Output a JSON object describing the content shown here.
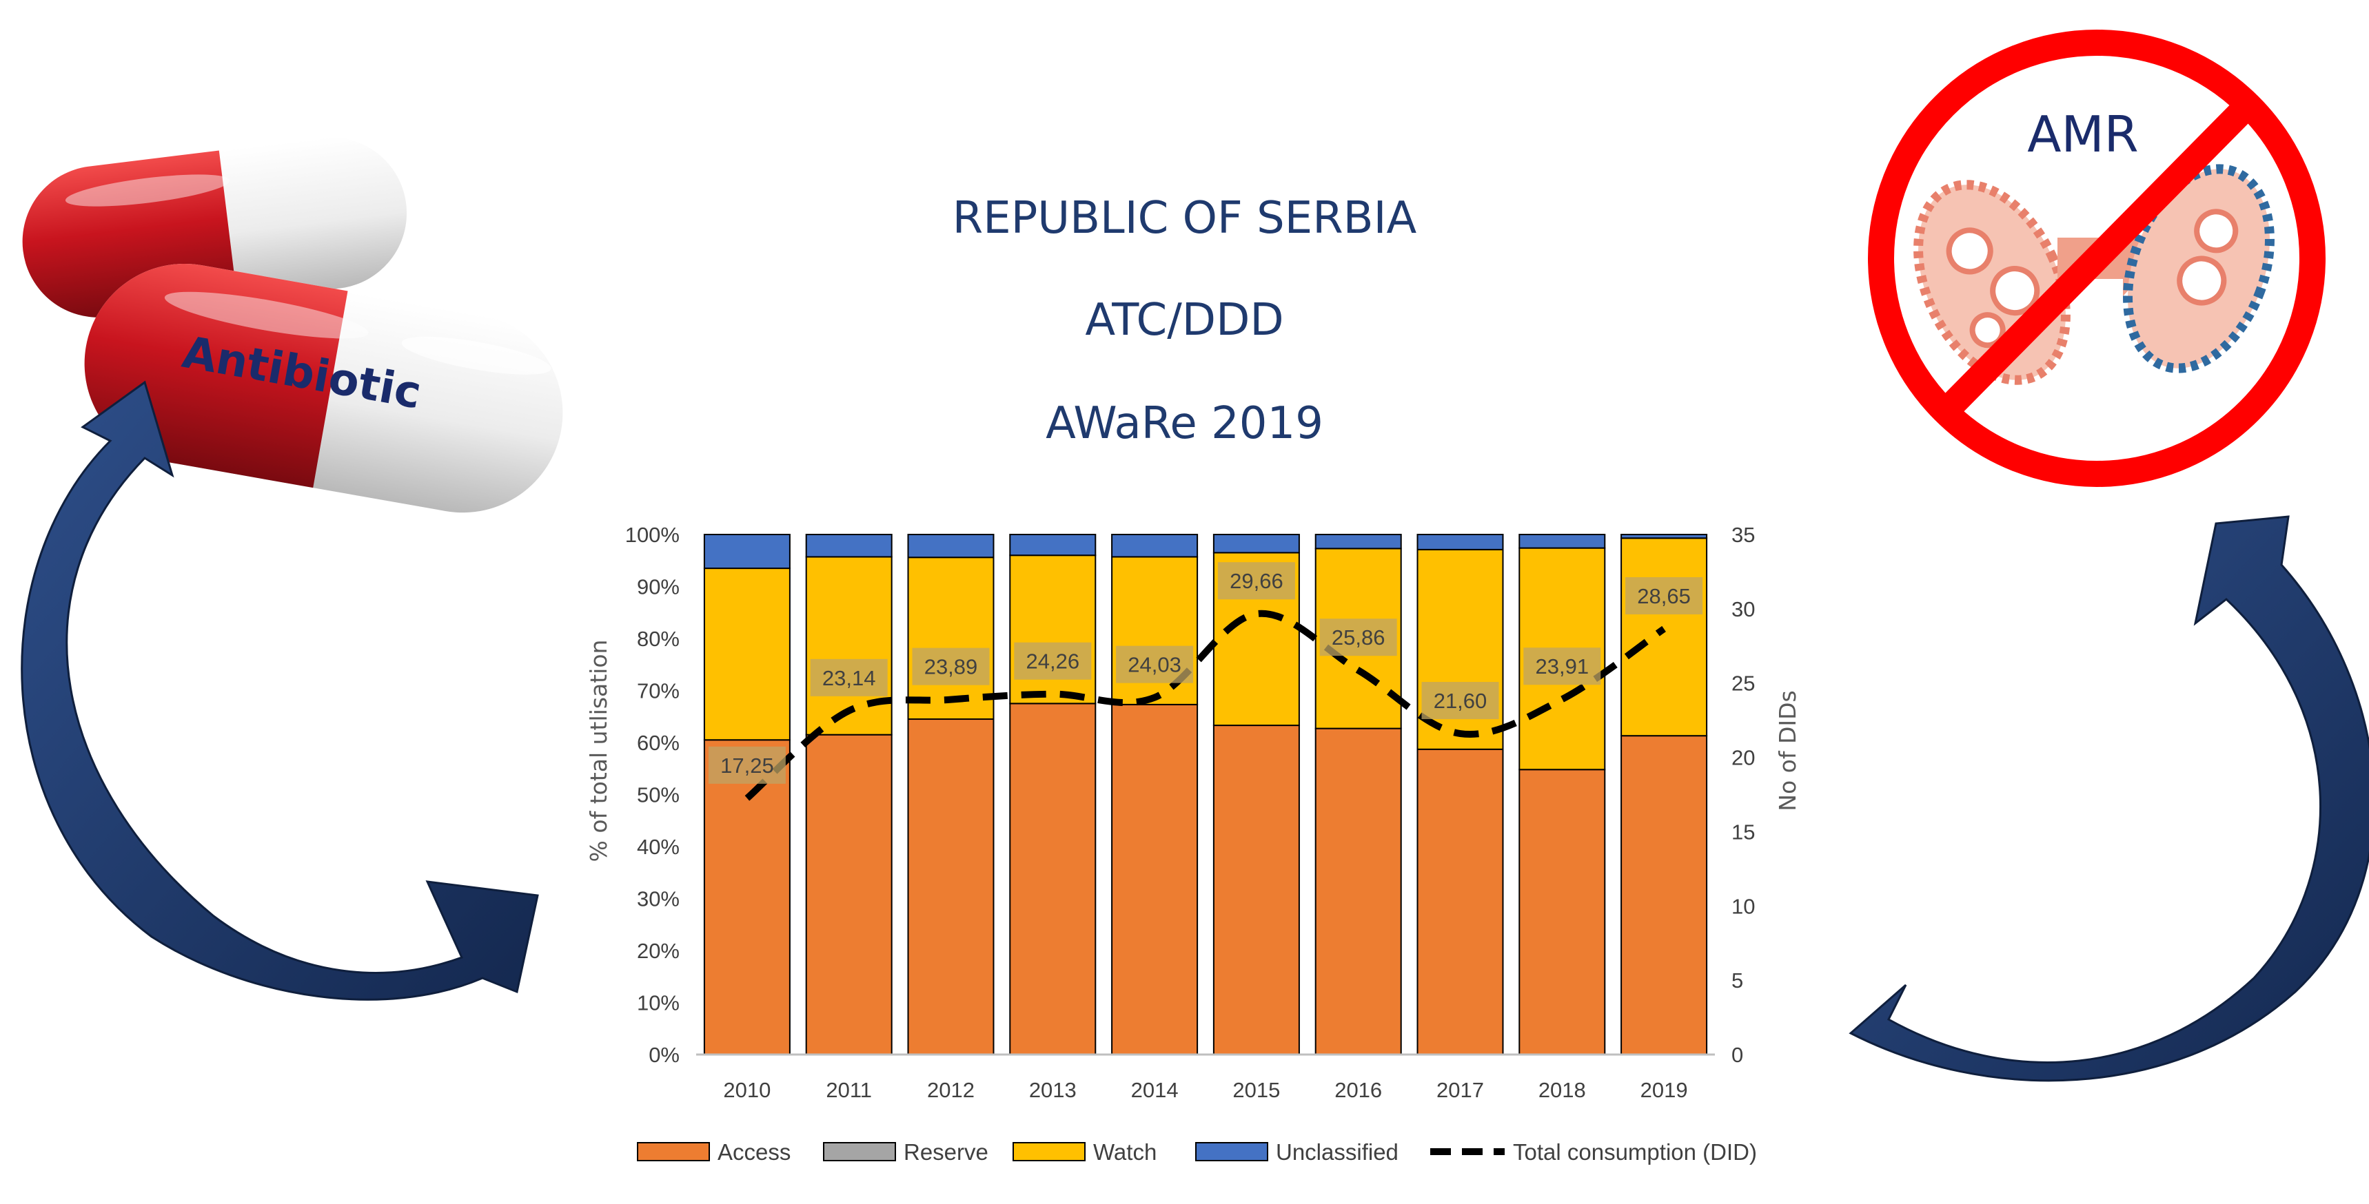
{
  "title": {
    "line1": "REPUBLIC OF SERBIA",
    "line2": "ATC/DDD",
    "line3": "AWaRe 2019"
  },
  "images": {
    "left_pill_label": "Antibiotic",
    "right_sign_label": "AMR"
  },
  "colors": {
    "access": "#ED7D31",
    "reserve": "#A5A5A5",
    "watch": "#FFC000",
    "unclassified": "#4472C4",
    "total": "#000000",
    "arrow": "#1f3864",
    "title": "#1f3a6e",
    "pill_red": "#c8141e",
    "no_sign_red": "#ff0000"
  },
  "chart_data": {
    "type": "bar",
    "stacked": true,
    "categories": [
      "2010",
      "2011",
      "2012",
      "2013",
      "2014",
      "2015",
      "2016",
      "2017",
      "2018",
      "2019"
    ],
    "series": [
      {
        "name": "Access",
        "color": "#ED7D31",
        "values": [
          60.5,
          61.5,
          64.5,
          67.5,
          67.3,
          63.3,
          62.7,
          58.7,
          54.8,
          61.3
        ]
      },
      {
        "name": "Reserve",
        "color": "#A5A5A5",
        "values": [
          0,
          0,
          0,
          0,
          0,
          0,
          0,
          0,
          0,
          0
        ]
      },
      {
        "name": "Watch",
        "color": "#FFC000",
        "values": [
          33.0,
          34.2,
          31.1,
          28.5,
          28.4,
          33.2,
          34.6,
          38.4,
          42.6,
          38.0
        ]
      },
      {
        "name": "Unclassified",
        "color": "#4472C4",
        "values": [
          6.5,
          4.3,
          4.4,
          4.0,
          4.3,
          3.5,
          2.7,
          2.9,
          2.6,
          0.7
        ]
      }
    ],
    "line": {
      "name": "Total consumption (DID)",
      "values": [
        17.25,
        23.14,
        23.89,
        24.26,
        24.03,
        29.66,
        25.86,
        21.6,
        23.91,
        28.65
      ],
      "labels": [
        "17,25",
        "23,14",
        "23,89",
        "24,26",
        "24,03",
        "29,66",
        "25,86",
        "21,60",
        "23,91",
        "28,65"
      ],
      "axis": "secondary"
    },
    "ylabel": "% of total utlisation",
    "y2label": "No of DIDs",
    "ylim": [
      0,
      100
    ],
    "y2lim": [
      0,
      35
    ],
    "yticks": [
      "0%",
      "10%",
      "20%",
      "30%",
      "40%",
      "50%",
      "60%",
      "70%",
      "80%",
      "90%",
      "100%"
    ],
    "y2ticks": [
      "0",
      "5",
      "10",
      "15",
      "20",
      "25",
      "30",
      "35"
    ],
    "legend": [
      "Access",
      "Reserve",
      "Watch",
      "Unclassified",
      "Total consumption (DID)"
    ],
    "legend_position": "bottom",
    "grid": false
  }
}
